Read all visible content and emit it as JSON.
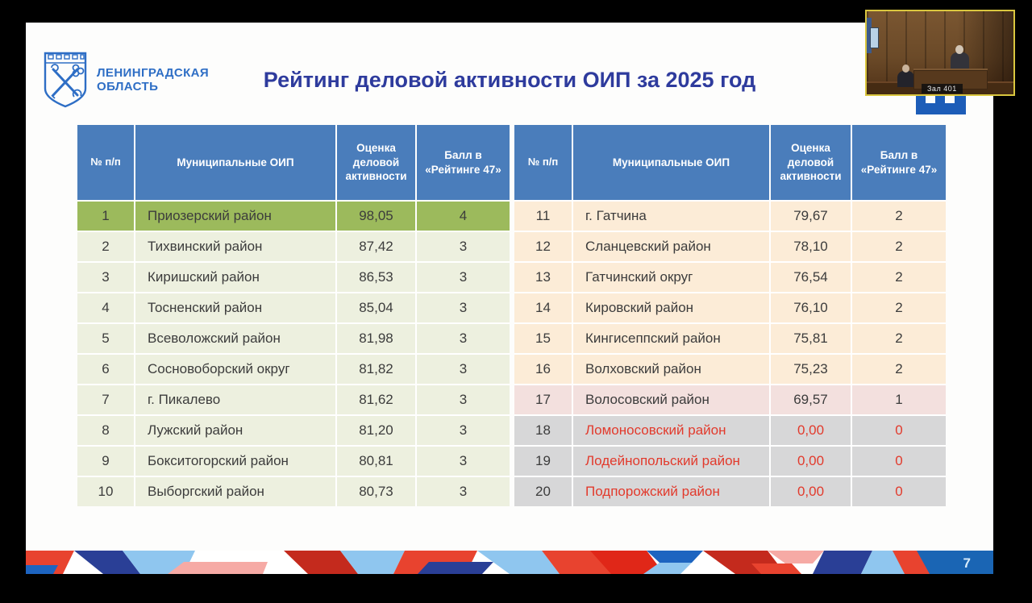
{
  "page": {
    "number": "7"
  },
  "videoconf": {
    "tile_label": "Зал 401",
    "border_color": "#d9c63f"
  },
  "slide": {
    "logo": {
      "line1": "ЛЕНИНГРАДСКАЯ",
      "line2": "ОБЛАСТЬ",
      "color": "#2e6ec5",
      "icon": "coat-of-arms-icon"
    },
    "title": {
      "text": "Рейтинг деловой активности ОИП за 2025 год",
      "color": "#2e3b9d"
    },
    "table_headers": [
      "№ п/п",
      "Муниципальные ОИП",
      "Оценка деловой активности",
      "Балл в «Рейтинге 47»"
    ],
    "left_table": {
      "rows": [
        {
          "rank": "1",
          "name": "Приозерский район",
          "score": "98,05",
          "points": "4",
          "style": "rank1"
        },
        {
          "rank": "2",
          "name": "Тихвинский район",
          "score": "87,42",
          "points": "3",
          "style": "light"
        },
        {
          "rank": "3",
          "name": "Киришский район",
          "score": "86,53",
          "points": "3",
          "style": "light"
        },
        {
          "rank": "4",
          "name": "Тосненский район",
          "score": "85,04",
          "points": "3",
          "style": "light"
        },
        {
          "rank": "5",
          "name": "Всеволожский район",
          "score": "81,98",
          "points": "3",
          "style": "light"
        },
        {
          "rank": "6",
          "name": "Сосновоборский округ",
          "score": "81,82",
          "points": "3",
          "style": "light"
        },
        {
          "rank": "7",
          "name": "г. Пикалево",
          "score": "81,62",
          "points": "3",
          "style": "light"
        },
        {
          "rank": "8",
          "name": "Лужский район",
          "score": "81,20",
          "points": "3",
          "style": "light"
        },
        {
          "rank": "9",
          "name": "Бокситогорский район",
          "score": "80,81",
          "points": "3",
          "style": "light"
        },
        {
          "rank": "10",
          "name": "Выборгский район",
          "score": "80,73",
          "points": "3",
          "style": "light"
        }
      ]
    },
    "right_table": {
      "rows": [
        {
          "rank": "11",
          "name": "г. Гатчина",
          "score": "79,67",
          "points": "2",
          "style": "peach"
        },
        {
          "rank": "12",
          "name": "Сланцевский район",
          "score": "78,10",
          "points": "2",
          "style": "peach"
        },
        {
          "rank": "13",
          "name": "Гатчинский округ",
          "score": "76,54",
          "points": "2",
          "style": "peach"
        },
        {
          "rank": "14",
          "name": "Кировский район",
          "score": "76,10",
          "points": "2",
          "style": "peach"
        },
        {
          "rank": "15",
          "name": "Кингисеппский район",
          "score": "75,81",
          "points": "2",
          "style": "peach"
        },
        {
          "rank": "16",
          "name": "Волховский район",
          "score": "75,23",
          "points": "2",
          "style": "peach"
        },
        {
          "rank": "17",
          "name": "Волосовский район",
          "score": "69,57",
          "points": "1",
          "style": "pink"
        },
        {
          "rank": "18",
          "name": "Ломоносовский район",
          "score": "0,00",
          "points": "0",
          "style": "zero"
        },
        {
          "rank": "19",
          "name": "Лодейнопольский район",
          "score": "0,00",
          "points": "0",
          "style": "zero"
        },
        {
          "rank": "20",
          "name": "Подпорожский район",
          "score": "0,00",
          "points": "0",
          "style": "zero"
        }
      ]
    },
    "colors": {
      "header_bg": "#4a7dbb",
      "header_text": "#ffffff",
      "rank1_bg": "#9cba5c",
      "light_bg": "#edf0df",
      "peach_bg": "#fcecd7",
      "pink_bg": "#f3e0de",
      "zero_bg": "#d7d7d8",
      "zero_text": "#e23a2c",
      "band_blue": "#1a65b4"
    }
  }
}
